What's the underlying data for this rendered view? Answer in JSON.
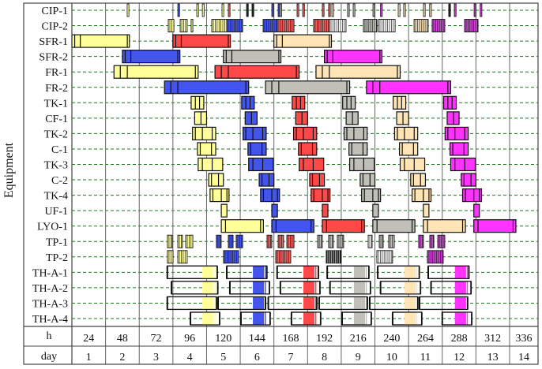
{
  "chart_data": {
    "type": "gantt",
    "ylabel": "Equipment",
    "x_unit_label": "h",
    "day_label": "day",
    "hours": [
      24,
      48,
      72,
      96,
      120,
      144,
      168,
      192,
      216,
      240,
      264,
      288,
      312,
      336
    ],
    "days": [
      1,
      2,
      3,
      4,
      5,
      6,
      7,
      8,
      9,
      10,
      11,
      12,
      13,
      14
    ],
    "xlim": [
      0,
      336
    ],
    "grid": "dashed row lines, vertical day lines",
    "batch_colors": [
      "#FFFF99",
      "#4455EE",
      "#FF4848",
      "#C0C0B8",
      "#FFE4B5",
      "#FF33FF"
    ],
    "palette": {
      "y": "#FFFF99",
      "b": "#4455EE",
      "r": "#F26060",
      "g": "#C0C0B8",
      "p": "#FFE4B5",
      "m": "#D040D8",
      "k": "#222222",
      "w": "#FFFFFF"
    },
    "rows": [
      {
        "label": "CIP-1",
        "kind": "marks",
        "marks": [
          [
            39.4,
            "y"
          ],
          [
            75.5,
            "b"
          ],
          [
            89,
            "y"
          ],
          [
            93,
            "y"
          ],
          [
            107,
            "y"
          ],
          [
            111.5,
            "r"
          ],
          [
            124.5,
            "k"
          ],
          [
            128.4,
            "k"
          ],
          [
            142.5,
            "b"
          ],
          [
            147,
            "b"
          ],
          [
            148.3,
            "g"
          ],
          [
            160.5,
            "r"
          ],
          [
            164.5,
            "r"
          ],
          [
            178.5,
            "r"
          ],
          [
            183,
            "r"
          ],
          [
            185.3,
            "p"
          ],
          [
            196.5,
            "g"
          ],
          [
            200.5,
            "g"
          ],
          [
            214.6,
            "g"
          ],
          [
            220,
            "m"
          ],
          [
            232.6,
            "p"
          ],
          [
            236.5,
            "p"
          ],
          [
            250.6,
            "p"
          ],
          [
            255,
            "p"
          ],
          [
            268.6,
            "k"
          ],
          [
            272.6,
            "m"
          ],
          [
            286.7,
            "m"
          ],
          [
            291,
            "m"
          ]
        ]
      },
      {
        "label": "CIP-2",
        "kind": "hatch",
        "blocks": [
          [
            68.7,
            72.7,
            "y"
          ],
          [
            77.2,
            82.2,
            "y"
          ],
          [
            85,
            86.2,
            "y"
          ],
          [
            99.7,
            110.4,
            "y"
          ],
          [
            110.4,
            121.7,
            "b"
          ],
          [
            136.3,
            146.4,
            "b"
          ],
          [
            146.4,
            158.3,
            "r"
          ],
          [
            172.3,
            183.6,
            "r"
          ],
          [
            183.6,
            195.4,
            "w"
          ],
          [
            207.8,
            217.4,
            "g"
          ],
          [
            218.5,
            230.4,
            "w"
          ],
          [
            243.9,
            254,
            "p"
          ],
          [
            256.8,
            265.8,
            "m"
          ],
          [
            279.9,
            289.5,
            "m"
          ]
        ]
      },
      {
        "label": "SFR-1",
        "kind": "bars",
        "div": [
          2,
          6,
          39.5
        ],
        "bars": [
          [
            0,
            41,
            0
          ],
          [
            72,
            113,
            2
          ],
          [
            144,
            185,
            4
          ]
        ]
      },
      {
        "label": "SFR-2",
        "kind": "bars",
        "div": [
          2,
          6,
          39.5
        ],
        "bars": [
          [
            36,
            77,
            1
          ],
          [
            108,
            149,
            3
          ],
          [
            180,
            221,
            5
          ]
        ]
      },
      {
        "label": "FR-1",
        "kind": "bars",
        "div": [
          4.5,
          9.5,
          58
        ],
        "bars": [
          [
            30,
            90,
            0
          ],
          [
            102,
            162,
            2
          ],
          [
            174,
            234,
            4
          ]
        ]
      },
      {
        "label": "FR-2",
        "kind": "bars",
        "div": [
          4.5,
          9.5,
          58
        ],
        "bars": [
          [
            66,
            126,
            1
          ],
          [
            138,
            198,
            3
          ],
          [
            210,
            270,
            5
          ]
        ]
      },
      {
        "label": "TK-1",
        "kind": "bars",
        "div": [
          3,
          6
        ],
        "bars": [
          [
            85,
            94,
            0
          ],
          [
            121,
            130,
            1
          ],
          [
            157,
            166,
            2
          ],
          [
            193,
            202,
            3
          ],
          [
            229,
            238,
            4
          ],
          [
            265,
            274,
            5
          ]
        ]
      },
      {
        "label": "CF-1",
        "kind": "bars",
        "div": [
          4.5
        ],
        "bars": [
          [
            87.5,
            96,
            0
          ],
          [
            123.5,
            132,
            1
          ],
          [
            159.5,
            168,
            2
          ],
          [
            195.5,
            204,
            3
          ],
          [
            231.5,
            240,
            4
          ],
          [
            267.5,
            276,
            5
          ]
        ]
      },
      {
        "label": "TK-2",
        "kind": "bars",
        "div": [
          2,
          7,
          14
        ],
        "bars": [
          [
            86,
            102.5,
            0
          ],
          [
            122,
            138.5,
            1
          ],
          [
            158,
            174.5,
            2
          ],
          [
            194,
            210.5,
            3
          ],
          [
            230,
            246.5,
            4
          ],
          [
            266,
            282.5,
            5
          ]
        ]
      },
      {
        "label": "C-1",
        "kind": "bars",
        "div": [
          2,
          10
        ],
        "bars": [
          [
            89.5,
            102.5,
            0
          ],
          [
            125.5,
            138.5,
            1
          ],
          [
            161.5,
            174.5,
            2
          ],
          [
            197.5,
            210.5,
            3
          ],
          [
            233.5,
            246.5,
            4
          ],
          [
            269.5,
            282.5,
            5
          ]
        ]
      },
      {
        "label": "TK-3",
        "kind": "bars",
        "div": [
          3,
          10
        ],
        "bars": [
          [
            90,
            107.5,
            0
          ],
          [
            126,
            143.5,
            1
          ],
          [
            162,
            179.5,
            2
          ],
          [
            198,
            215.5,
            3
          ],
          [
            234,
            251.5,
            4
          ],
          [
            270,
            287.5,
            5
          ]
        ]
      },
      {
        "label": "C-2",
        "kind": "bars",
        "div": [
          2,
          7
        ],
        "bars": [
          [
            97.5,
            108,
            0
          ],
          [
            133.5,
            144,
            1
          ],
          [
            169.5,
            180,
            2
          ],
          [
            205.5,
            216,
            3
          ],
          [
            241.5,
            252,
            4
          ],
          [
            277.5,
            288,
            5
          ]
        ]
      },
      {
        "label": "TK-4",
        "kind": "bars",
        "div": [
          2,
          8,
          12
        ],
        "bars": [
          [
            98.5,
            112,
            0
          ],
          [
            134.5,
            148,
            1
          ],
          [
            170.5,
            184,
            2
          ],
          [
            206.5,
            220,
            3
          ],
          [
            242.5,
            256,
            4
          ],
          [
            278.5,
            292,
            5
          ]
        ]
      },
      {
        "label": "UF-1",
        "kind": "bars",
        "div": [],
        "bars": [
          [
            106.5,
            110.5,
            0
          ],
          [
            142.5,
            146.5,
            1
          ],
          [
            178.5,
            182.5,
            2
          ],
          [
            214.5,
            218.5,
            3
          ],
          [
            250.5,
            254.5,
            4
          ],
          [
            286.5,
            290.5,
            5
          ]
        ]
      },
      {
        "label": "LYO-1",
        "kind": "bars",
        "div": [
          3,
          28
        ],
        "bars": [
          [
            106.5,
            136.5,
            0
          ],
          [
            142.5,
            172.5,
            1
          ],
          [
            178.5,
            208.5,
            2
          ],
          [
            214.5,
            244.5,
            3
          ],
          [
            250.5,
            280.5,
            4
          ],
          [
            286.5,
            316.5,
            5
          ]
        ]
      },
      {
        "label": "TP-1",
        "kind": "hatch",
        "blocks": [
          [
            68.1,
            71.5,
            "y"
          ],
          [
            75.5,
            78.8,
            "y"
          ],
          [
            81.1,
            86.2,
            "y"
          ],
          [
            103,
            106.4,
            "b"
          ],
          [
            111.5,
            114.9,
            "b"
          ],
          [
            117.1,
            121.7,
            "b"
          ],
          [
            139.1,
            142.5,
            "r"
          ],
          [
            147,
            150.9,
            "r"
          ],
          [
            153.2,
            158.3,
            "r"
          ],
          [
            175.2,
            178.5,
            "g"
          ],
          [
            183,
            186.4,
            "g"
          ],
          [
            189.2,
            193.7,
            "g"
          ],
          [
            211.2,
            214,
            "w"
          ],
          [
            219.1,
            221.9,
            "g"
          ],
          [
            225.8,
            229.8,
            "g"
          ],
          [
            247.2,
            250.6,
            "m"
          ],
          [
            255.1,
            258,
            "m"
          ],
          [
            260.8,
            265.8,
            "m"
          ]
        ]
      },
      {
        "label": "TP-2",
        "kind": "hatch",
        "blocks": [
          [
            68.1,
            72.1,
            "y"
          ],
          [
            75.5,
            82.2,
            "y"
          ],
          [
            108.1,
            118.8,
            "b"
          ],
          [
            145.3,
            156,
            "r"
          ],
          [
            181.3,
            192,
            "k"
          ],
          [
            217.4,
            228.6,
            "w"
          ],
          [
            253.4,
            264.7,
            "m"
          ]
        ]
      },
      {
        "label": "TH-A-1",
        "kind": "thaw",
        "bars": [
          [
            68,
            93,
            101,
            103.6,
            0
          ],
          [
            110.4,
            129,
            137,
            139,
            1
          ],
          [
            146.3,
            165,
            173,
            175.7,
            2
          ],
          [
            182,
            201,
            209,
            211.7,
            3
          ],
          [
            218,
            237,
            245,
            247.6,
            4
          ],
          [
            254,
            273,
            281,
            283,
            5
          ]
        ]
      },
      {
        "label": "TH-A-2",
        "kind": "thaw",
        "bars": [
          [
            71,
            93,
            101,
            104,
            0
          ],
          [
            112.6,
            129,
            137,
            140.8,
            1
          ],
          [
            148.6,
            165,
            173,
            176.8,
            2
          ],
          [
            184,
            201,
            209,
            212.8,
            3
          ],
          [
            220,
            237,
            245,
            248.5,
            4
          ],
          [
            256,
            273,
            281,
            284.5,
            5
          ]
        ]
      },
      {
        "label": "TH-A-3",
        "kind": "thaw",
        "bars": [
          [
            68,
            93,
            101,
            103,
            0
          ],
          [
            104.2,
            129,
            137,
            138,
            1
          ],
          [
            140,
            165,
            173,
            174.6,
            2
          ],
          [
            176.3,
            201,
            209,
            210.6,
            3
          ],
          [
            212.3,
            237,
            245,
            246.6,
            4
          ],
          [
            247.8,
            273,
            281,
            282.1,
            5
          ]
        ]
      },
      {
        "label": "TH-A-4",
        "kind": "thaw",
        "bars": [
          [
            84.5,
            93,
            101,
            105.3,
            0
          ],
          [
            120.5,
            129,
            137,
            141.3,
            1
          ],
          [
            156.5,
            165,
            173,
            177.3,
            2
          ],
          [
            192.6,
            201,
            209,
            213.4,
            3
          ],
          [
            228.6,
            237,
            245,
            249.4,
            4
          ],
          [
            264,
            273,
            281,
            285,
            5
          ]
        ]
      }
    ]
  }
}
